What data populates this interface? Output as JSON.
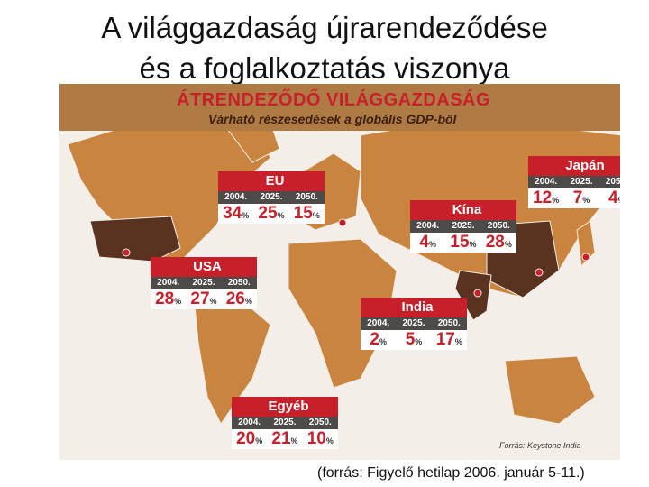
{
  "slide": {
    "title_line1": "A világgazdaság újrarendeződése",
    "title_line2": "és a foglalkoztatás viszonya",
    "caption": "(forrás: Figyelő hetilap 2006. január 5-11.)"
  },
  "map": {
    "title": "ÁTRENDEZŐDŐ VILÁGGAZDASÁG",
    "subtitle": "Várható részesedések a globális GDP-ből",
    "source": "Forrás: Keystone India",
    "years": [
      "2004.",
      "2025.",
      "2050."
    ],
    "unit": "%",
    "regions": [
      {
        "name": "EU",
        "values": [
          34,
          25,
          15
        ]
      },
      {
        "name": "Japán",
        "values": [
          12,
          7,
          4
        ]
      },
      {
        "name": "Kína",
        "values": [
          4,
          15,
          28
        ]
      },
      {
        "name": "USA",
        "values": [
          28,
          27,
          26
        ]
      },
      {
        "name": "India",
        "values": [
          2,
          5,
          17
        ]
      },
      {
        "name": "Egyéb",
        "values": [
          20,
          21,
          10
        ]
      }
    ]
  }
}
